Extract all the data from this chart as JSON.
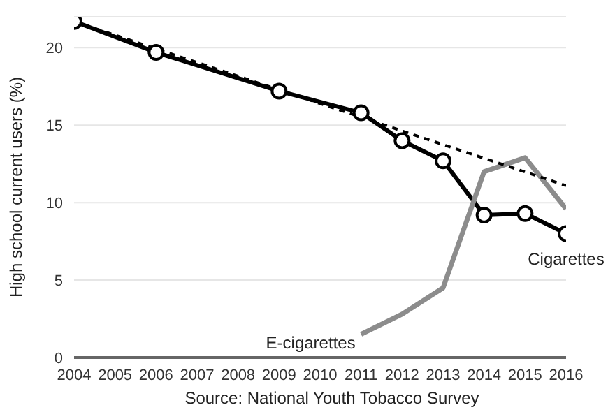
{
  "chart_data": {
    "type": "line",
    "x": [
      2004,
      2006,
      2009,
      2011,
      2012,
      2013,
      2014,
      2015,
      2016
    ],
    "series": [
      {
        "name": "Cigarettes",
        "color": "#000000",
        "marker": "circle",
        "values": [
          21.7,
          19.7,
          17.2,
          15.8,
          14.0,
          12.7,
          9.2,
          9.3,
          8.0
        ]
      },
      {
        "name": "E-cigarettes",
        "color": "#8c8c8c",
        "marker": "none",
        "x": [
          2011,
          2012,
          2013,
          2014,
          2015,
          2016
        ],
        "values": [
          1.5,
          2.8,
          4.5,
          12.0,
          12.9,
          9.6
        ]
      },
      {
        "color": "#000000",
        "marker": "none",
        "line_style": "dashed",
        "x": [
          2004,
          2016
        ],
        "values": [
          21.7,
          11.1
        ]
      }
    ],
    "ylabel": "High school current users (%)",
    "annotations": [
      "Source: National Youth Tobacco Survey"
    ],
    "xlim": [
      2004,
      2016
    ],
    "xticks": [
      2004,
      2005,
      2006,
      2007,
      2008,
      2009,
      2010,
      2011,
      2012,
      2013,
      2014,
      2015,
      2016
    ],
    "ylim": [
      0,
      22
    ],
    "yticks": [
      0,
      5,
      10,
      15,
      20
    ],
    "grid": "y",
    "legend": false
  }
}
